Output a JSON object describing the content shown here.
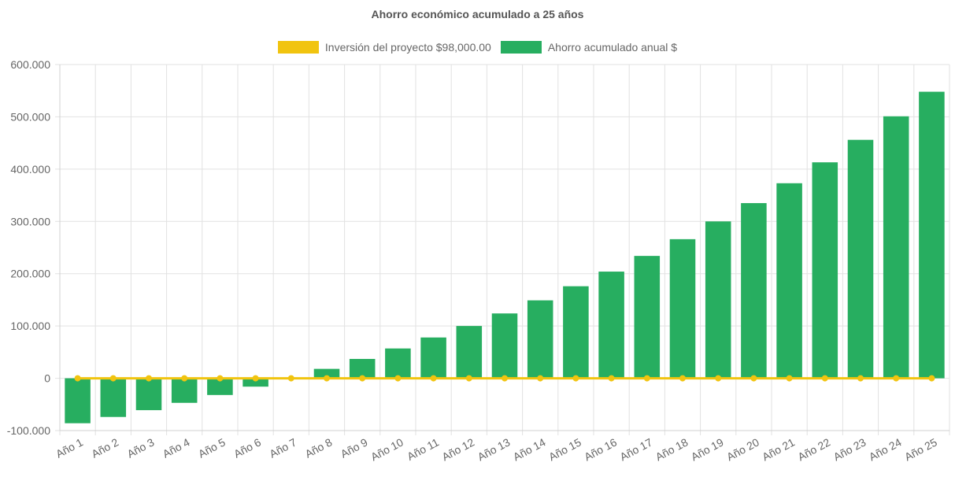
{
  "chart_data": {
    "type": "bar",
    "title": "Ahorro económico acumulado a 25 años",
    "categories": [
      "Año 1",
      "Año 2",
      "Año 3",
      "Año 4",
      "Año 5",
      "Año 6",
      "Año 7",
      "Año 8",
      "Año 9",
      "Año 10",
      "Año 11",
      "Año 12",
      "Año 13",
      "Año 14",
      "Año 15",
      "Año 16",
      "Año 17",
      "Año 18",
      "Año 19",
      "Año 20",
      "Año 21",
      "Año 22",
      "Año 23",
      "Año 24",
      "Año 25"
    ],
    "series": [
      {
        "name": "Inversión del proyecto $98,000.00",
        "type": "line",
        "color": "#f1c40f",
        "values": [
          0,
          0,
          0,
          0,
          0,
          0,
          0,
          0,
          0,
          0,
          0,
          0,
          0,
          0,
          0,
          0,
          0,
          0,
          0,
          0,
          0,
          0,
          0,
          0,
          0
        ]
      },
      {
        "name": "Ahorro acumulado anual $",
        "type": "bar",
        "color": "#27ae60",
        "values": [
          -86000,
          -74000,
          -61000,
          -47000,
          -32000,
          -16000,
          0,
          18000,
          37000,
          57000,
          78000,
          100000,
          124000,
          149000,
          176000,
          204000,
          234000,
          266000,
          300000,
          335000,
          373000,
          413000,
          456000,
          501000,
          548000
        ]
      }
    ],
    "ylim": [
      -100000,
      600000
    ],
    "yticks": [
      600000,
      500000,
      400000,
      300000,
      200000,
      100000,
      0,
      -100000
    ],
    "ytick_labels": [
      "600.000",
      "500.000",
      "400.000",
      "300.000",
      "200.000",
      "100.000",
      "0",
      "-100.000"
    ],
    "grid": true,
    "legend": "top-center"
  }
}
